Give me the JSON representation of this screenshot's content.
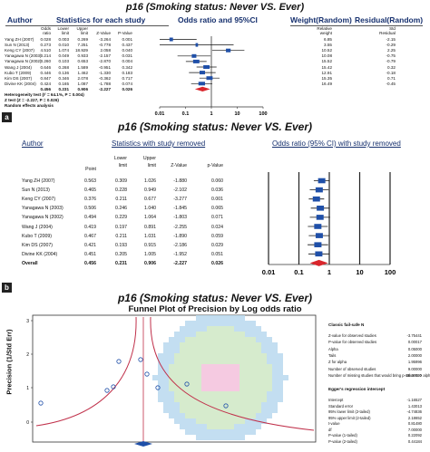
{
  "panelA": {
    "title": "p16 (Smoking status: Never VS. Ever)",
    "headers": {
      "author": "Author",
      "stats": "Statistics for each study",
      "or": "Odds ratio and 95%CI",
      "weight": "Weight(Random)",
      "residual": "Residual(Random)"
    },
    "subheaders": {
      "odds": [
        "Odds",
        "ratio"
      ],
      "lower": [
        "Lower",
        "limit"
      ],
      "upper": [
        "Upper",
        "limit"
      ],
      "z": "Z-Value",
      "p": "P-Value",
      "weight": [
        "Relative",
        "weight"
      ],
      "residual": [
        "Std",
        "Residual"
      ]
    },
    "rows": [
      {
        "author": "Yang ZH (2007)",
        "odds": "0.028",
        "lower": "0.003",
        "upper": "0.269",
        "z": "-3.264",
        "p": "0.001",
        "weight": "6.85",
        "res": "-2.15"
      },
      {
        "author": "Sun N (2013)",
        "odds": "0.273",
        "odds2": "",
        "lower": "0.010",
        "upper": "7.251",
        "z": "-0.778",
        "p": "0.437",
        "weight": "3.55",
        "res": "-0.29"
      },
      {
        "author": "Keng CY (2007)",
        "odds": "4.510",
        "lower": "1.074",
        "upper": "18.929",
        "z": "2.058",
        "p": "0.040",
        "weight": "10.52",
        "res": "2.25"
      },
      {
        "author": "Yanagawa N (2003)",
        "odds": "0.214",
        "lower": "0.049",
        "upper": "0.933",
        "z": "-2.157",
        "p": "0.031",
        "weight": "10.08",
        "res": "-0.75"
      },
      {
        "author": "Yanagawa N (2002)",
        "odds": "0.260",
        "lower": "0.103",
        "upper": "0.653",
        "z": "-2.870",
        "p": "0.004",
        "weight": "15.52",
        "res": "-0.79"
      },
      {
        "author": "Wang J (2004)",
        "odds": "0.646",
        "lower": "0.268",
        "upper": "1.589",
        "z": "-0.951",
        "p": "0.342",
        "weight": "15.42",
        "res": "0.32"
      },
      {
        "author": "Kubo T (2009)",
        "odds": "0.446",
        "lower": "0.136",
        "upper": "1.462",
        "z": "-1.330",
        "p": "0.183",
        "weight": "12.91",
        "res": "-0.18"
      },
      {
        "author": "Kim DS (2007)",
        "odds": "0.847",
        "lower": "0.346",
        "upper": "2.078",
        "z": "-0.362",
        "p": "0.717",
        "weight": "15.35",
        "res": "0.71"
      },
      {
        "author": "Divine KK (2004)",
        "odds": "0.424",
        "lower": "0.165",
        "upper": "1.087",
        "z": "-1.788",
        "p": "0.074",
        "weight": "16.49",
        "res": "-0.45"
      },
      {
        "author": "",
        "odds": "0.456",
        "lower": "0.231",
        "upper": "0.906",
        "z": "-2.227",
        "p": "0.026",
        "weight": "",
        "res": ""
      }
    ],
    "footer": [
      "Heterogeneity test (I² = 64.1%, P = 0.004)",
      "Z test (Z = -2.227, P = 0.026)",
      "Random effects analysis"
    ],
    "axis_ticks": [
      "0.01",
      "0.1",
      "1",
      "10",
      "100"
    ]
  },
  "labelA": "a",
  "panelB": {
    "title": "p16 (Smoking status: Never VS. Ever)",
    "headers": {
      "author": "Author",
      "stats": "Statistics with study removed",
      "or": "Odds ratio (95% CI) with study removed"
    },
    "subheaders": {
      "point": "Point",
      "lower": [
        "Lower",
        "limit"
      ],
      "upper": [
        "Upper",
        "limit"
      ],
      "z": "Z-Value",
      "p": "p-Value"
    },
    "rows": [
      {
        "author": "Yang ZH (2007)",
        "point": "0.563",
        "lower": "0.309",
        "upper": "1.026",
        "z": "-1.880",
        "p": "0.060"
      },
      {
        "author": "Sun N (2013)",
        "point": "0.465",
        "lower": "0.228",
        "upper": "0.949",
        "z": "-2.102",
        "p": "0.036"
      },
      {
        "author": "Keng CY (2007)",
        "point": "0.376",
        "lower": "0.211",
        "upper": "0.677",
        "z": "-3.277",
        "p": "0.001"
      },
      {
        "author": "Yanagawa N (2003)",
        "point": "0.506",
        "lower": "0.246",
        "upper": "1.040",
        "z": "-1.845",
        "p": "0.065"
      },
      {
        "author": "Yanagawa N (2002)",
        "point": "0.494",
        "lower": "0.229",
        "upper": "1.064",
        "z": "-1.803",
        "p": "0.071"
      },
      {
        "author": "Wang J (2004)",
        "point": "0.419",
        "lower": "0.197",
        "upper": "0.891",
        "z": "-2.255",
        "p": "0.024"
      },
      {
        "author": "Kubo T (2009)",
        "point": "0.467",
        "lower": "0.211",
        "upper": "1.031",
        "z": "-1.890",
        "p": "0.059"
      },
      {
        "author": "Kim DS (2007)",
        "point": "0.421",
        "lower": "0.193",
        "upper": "0.915",
        "z": "-2.186",
        "p": "0.029"
      },
      {
        "author": "Divine KK (2004)",
        "point": "0.451",
        "lower": "0.205",
        "upper": "1.005",
        "z": "-1.952",
        "p": "0.051"
      },
      {
        "author": "Overall",
        "point": "0.456",
        "lower": "0.231",
        "upper": "0.906",
        "z": "-2.227",
        "p": "0.026"
      }
    ],
    "axis_ticks": [
      "0.01",
      "0.1",
      "1",
      "10",
      "100"
    ]
  },
  "labelB": "b",
  "panelC": {
    "title": "p16 (Smoking status: Never VS. Ever)",
    "subtitle": "Funnel Plot of Precision by Log odds ratio",
    "ylabel": "Precision (1/Std Err)",
    "y_ticks": [
      "3",
      "2",
      "1",
      "0"
    ],
    "failsafe_title": "Classic fail-safe N",
    "failsafe_rows": [
      {
        "label": "Z-value for observed studies",
        "value": "-3.75441"
      },
      {
        "label": "P-value for observed studies",
        "value": "0.00017"
      },
      {
        "label": "Alpha",
        "value": "0.05000"
      },
      {
        "label": "Tails",
        "value": "2.00000"
      },
      {
        "label": "Z for alpha",
        "value": "1.95996"
      },
      {
        "label": "Number of observed studies",
        "value": "9.00000"
      },
      {
        "label": "Number of missing studies that would bring p-value to > alpha",
        "value": "25.00000"
      }
    ],
    "egger_title": "Egger's regression intercept",
    "egger_rows": [
      {
        "label": "Intercept",
        "value": "-1.16527"
      },
      {
        "label": "Standard error",
        "value": "1.43013"
      },
      {
        "label": "95% lower limit (2-tailed)",
        "value": "-4.74836"
      },
      {
        "label": "95% upper limit (2-tailed)",
        "value": "2.18652"
      },
      {
        "label": "t-value",
        "value": "0.81480"
      },
      {
        "label": "df",
        "value": "7.00000"
      },
      {
        "label": "P-value (1-tailed)",
        "value": "0.22092"
      },
      {
        "label": "P-value (2-tailed)",
        "value": "0.44184"
      }
    ]
  },
  "colors": {
    "square": "#1f4fa8",
    "diamond": "#d9262c",
    "header_blue": "#16306e",
    "funnel_line": "#c0304a",
    "green": "#cfe8c4",
    "blue": "#b9d8ef",
    "pink": "#f3c1dc"
  }
}
